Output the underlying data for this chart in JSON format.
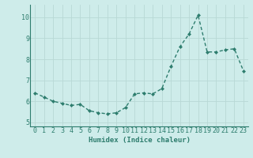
{
  "x": [
    0,
    1,
    2,
    3,
    4,
    5,
    6,
    7,
    8,
    9,
    10,
    11,
    12,
    13,
    14,
    15,
    16,
    17,
    18,
    19,
    20,
    21,
    22,
    23
  ],
  "y": [
    6.4,
    6.2,
    6.0,
    5.9,
    5.8,
    5.85,
    5.55,
    5.45,
    5.4,
    5.45,
    5.7,
    6.35,
    6.4,
    6.35,
    6.6,
    7.65,
    8.6,
    9.2,
    10.1,
    8.35,
    8.35,
    8.45,
    8.5,
    7.45
  ],
  "line_color": "#2e7d6e",
  "marker": "D",
  "marker_size": 2.0,
  "line_width": 1.0,
  "bg_color": "#ceecea",
  "grid_color": "#b8d8d5",
  "xlabel": "Humidex (Indice chaleur)",
  "ylim": [
    4.8,
    10.6
  ],
  "xlim": [
    -0.5,
    23.5
  ],
  "yticks": [
    5,
    6,
    7,
    8,
    9,
    10
  ],
  "xticks": [
    0,
    1,
    2,
    3,
    4,
    5,
    6,
    7,
    8,
    9,
    10,
    11,
    12,
    13,
    14,
    15,
    16,
    17,
    18,
    19,
    20,
    21,
    22,
    23
  ],
  "xlabel_fontsize": 6.5,
  "tick_fontsize": 6.0,
  "tick_color": "#2e7d6e",
  "spine_color": "#2e7d6e"
}
